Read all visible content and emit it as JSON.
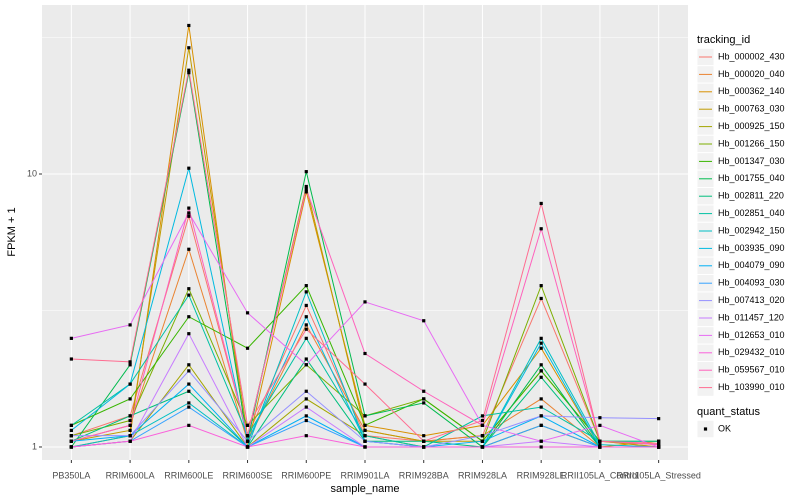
{
  "chart_data": {
    "type": "line",
    "x_label": "sample_name",
    "y_label": "FPKM + 1",
    "log_y": true,
    "grid": true,
    "legend_position": "right",
    "categories": [
      "PB350LA",
      "RRIM600LA",
      "RRIM600LE",
      "RRIM600SE",
      "RRIM600PE",
      "RRIM901LA",
      "RRIM928BA",
      "RRIM928LA",
      "RRIM928LE",
      "RRII105LA_Control",
      "RRII105LA_Stressed"
    ],
    "ylim": [
      0.896,
      41.6
    ],
    "yticks": [
      1,
      10
    ],
    "legend_title": "tracking_id",
    "point_legend": {
      "title": "quant_status",
      "levels": [
        "OK"
      ],
      "color": "#000000"
    },
    "series": [
      {
        "name": "Hb_000002_430",
        "color": "#F8766D",
        "values": [
          1.1,
          1.3,
          7.0,
          1.1,
          3.3,
          1.1,
          1.05,
          1.1,
          3.5,
          1.05,
          1.0
        ]
      },
      {
        "name": "Hb_000020_040",
        "color": "#EA8331",
        "values": [
          1.05,
          1.2,
          5.3,
          1.05,
          2.8,
          1.15,
          1.05,
          1.1,
          1.5,
          1.0,
          1.0
        ]
      },
      {
        "name": "Hb_000362_140",
        "color": "#D89000",
        "values": [
          1.0,
          1.1,
          35,
          1.0,
          8.6,
          1.2,
          1.1,
          1.2,
          2.3,
          1.0,
          1.05
        ]
      },
      {
        "name": "Hb_000763_030",
        "color": "#C09B00",
        "values": [
          1.05,
          1.15,
          29,
          1.1,
          9.0,
          1.15,
          1.05,
          1.05,
          1.9,
          1.05,
          1.0
        ]
      },
      {
        "name": "Hb_000925_150",
        "color": "#A3A500",
        "values": [
          1.0,
          1.05,
          2.0,
          1.0,
          1.5,
          1.1,
          1.0,
          1.0,
          1.2,
          1.0,
          1.0
        ]
      },
      {
        "name": "Hb_001266_150",
        "color": "#7CAE00",
        "values": [
          1.1,
          1.25,
          3.8,
          1.2,
          2.0,
          1.3,
          1.5,
          1.05,
          3.9,
          1.05,
          1.02
        ]
      },
      {
        "name": "Hb_001347_030",
        "color": "#39B600",
        "values": [
          1.2,
          1.5,
          3.0,
          2.3,
          3.9,
          1.2,
          1.5,
          1.05,
          1.9,
          1.05,
          1.05
        ]
      },
      {
        "name": "Hb_001755_040",
        "color": "#00BB4E",
        "values": [
          1.0,
          2.0,
          23.5,
          1.05,
          10.2,
          1.3,
          1.45,
          1.0,
          2.0,
          1.0,
          1.0
        ]
      },
      {
        "name": "Hb_002811_220",
        "color": "#00BF7D",
        "values": [
          1.05,
          1.3,
          1.6,
          1.0,
          2.1,
          1.05,
          1.05,
          1.0,
          1.8,
          1.0,
          1.0
        ]
      },
      {
        "name": "Hb_002851_040",
        "color": "#00C1A3",
        "values": [
          1.2,
          1.7,
          3.6,
          1.1,
          2.5,
          1.1,
          1.0,
          1.3,
          1.4,
          1.05,
          1.05
        ]
      },
      {
        "name": "Hb_002942_150",
        "color": "#00BFC4",
        "values": [
          1.0,
          1.1,
          1.45,
          1.0,
          3.7,
          1.05,
          1.0,
          1.0,
          2.5,
          1.02,
          1.0
        ]
      },
      {
        "name": "Hb_003935_090",
        "color": "#00BAE0",
        "values": [
          1.15,
          1.7,
          10.5,
          1.05,
          3.0,
          1.05,
          1.0,
          1.0,
          2.4,
          1.0,
          1.0
        ]
      },
      {
        "name": "Hb_004079_090",
        "color": "#00B0F6",
        "values": [
          1.05,
          1.1,
          1.7,
          1.0,
          1.3,
          1.0,
          1.0,
          1.05,
          1.3,
          1.0,
          1.0
        ]
      },
      {
        "name": "Hb_004093_030",
        "color": "#35A2FF",
        "values": [
          1.0,
          1.05,
          1.4,
          1.0,
          1.25,
          1.0,
          1.0,
          1.0,
          1.2,
          1.0,
          1.0
        ]
      },
      {
        "name": "Hb_007413_020",
        "color": "#9590FF",
        "values": [
          1.1,
          1.1,
          1.9,
          1.05,
          1.6,
          1.05,
          1.0,
          1.1,
          1.3,
          1.28,
          1.27
        ]
      },
      {
        "name": "Hb_011457_120",
        "color": "#C77CFF",
        "values": [
          1.0,
          1.05,
          2.6,
          1.0,
          1.4,
          1.0,
          1.0,
          1.0,
          1.05,
          1.0,
          1.0
        ]
      },
      {
        "name": "Hb_012653_010",
        "color": "#E76BF3",
        "values": [
          2.5,
          2.8,
          7.2,
          3.1,
          2.0,
          3.4,
          2.9,
          1.2,
          1.05,
          1.2,
          1.0
        ]
      },
      {
        "name": "Hb_029432_010",
        "color": "#FA62DB",
        "values": [
          1.0,
          1.05,
          1.2,
          1.0,
          1.1,
          1.0,
          1.0,
          1.0,
          1.0,
          1.0,
          1.0
        ]
      },
      {
        "name": "Hb_059567_010",
        "color": "#FF62BC",
        "values": [
          1.05,
          1.2,
          7.5,
          1.1,
          8.8,
          2.2,
          1.6,
          1.2,
          6.3,
          1.05,
          1.02
        ]
      },
      {
        "name": "Hb_103990_010",
        "color": "#FF6C91",
        "values": [
          2.1,
          2.05,
          24,
          1.2,
          2.7,
          1.7,
          1.05,
          1.25,
          7.8,
          1.05,
          1.03
        ]
      }
    ]
  }
}
